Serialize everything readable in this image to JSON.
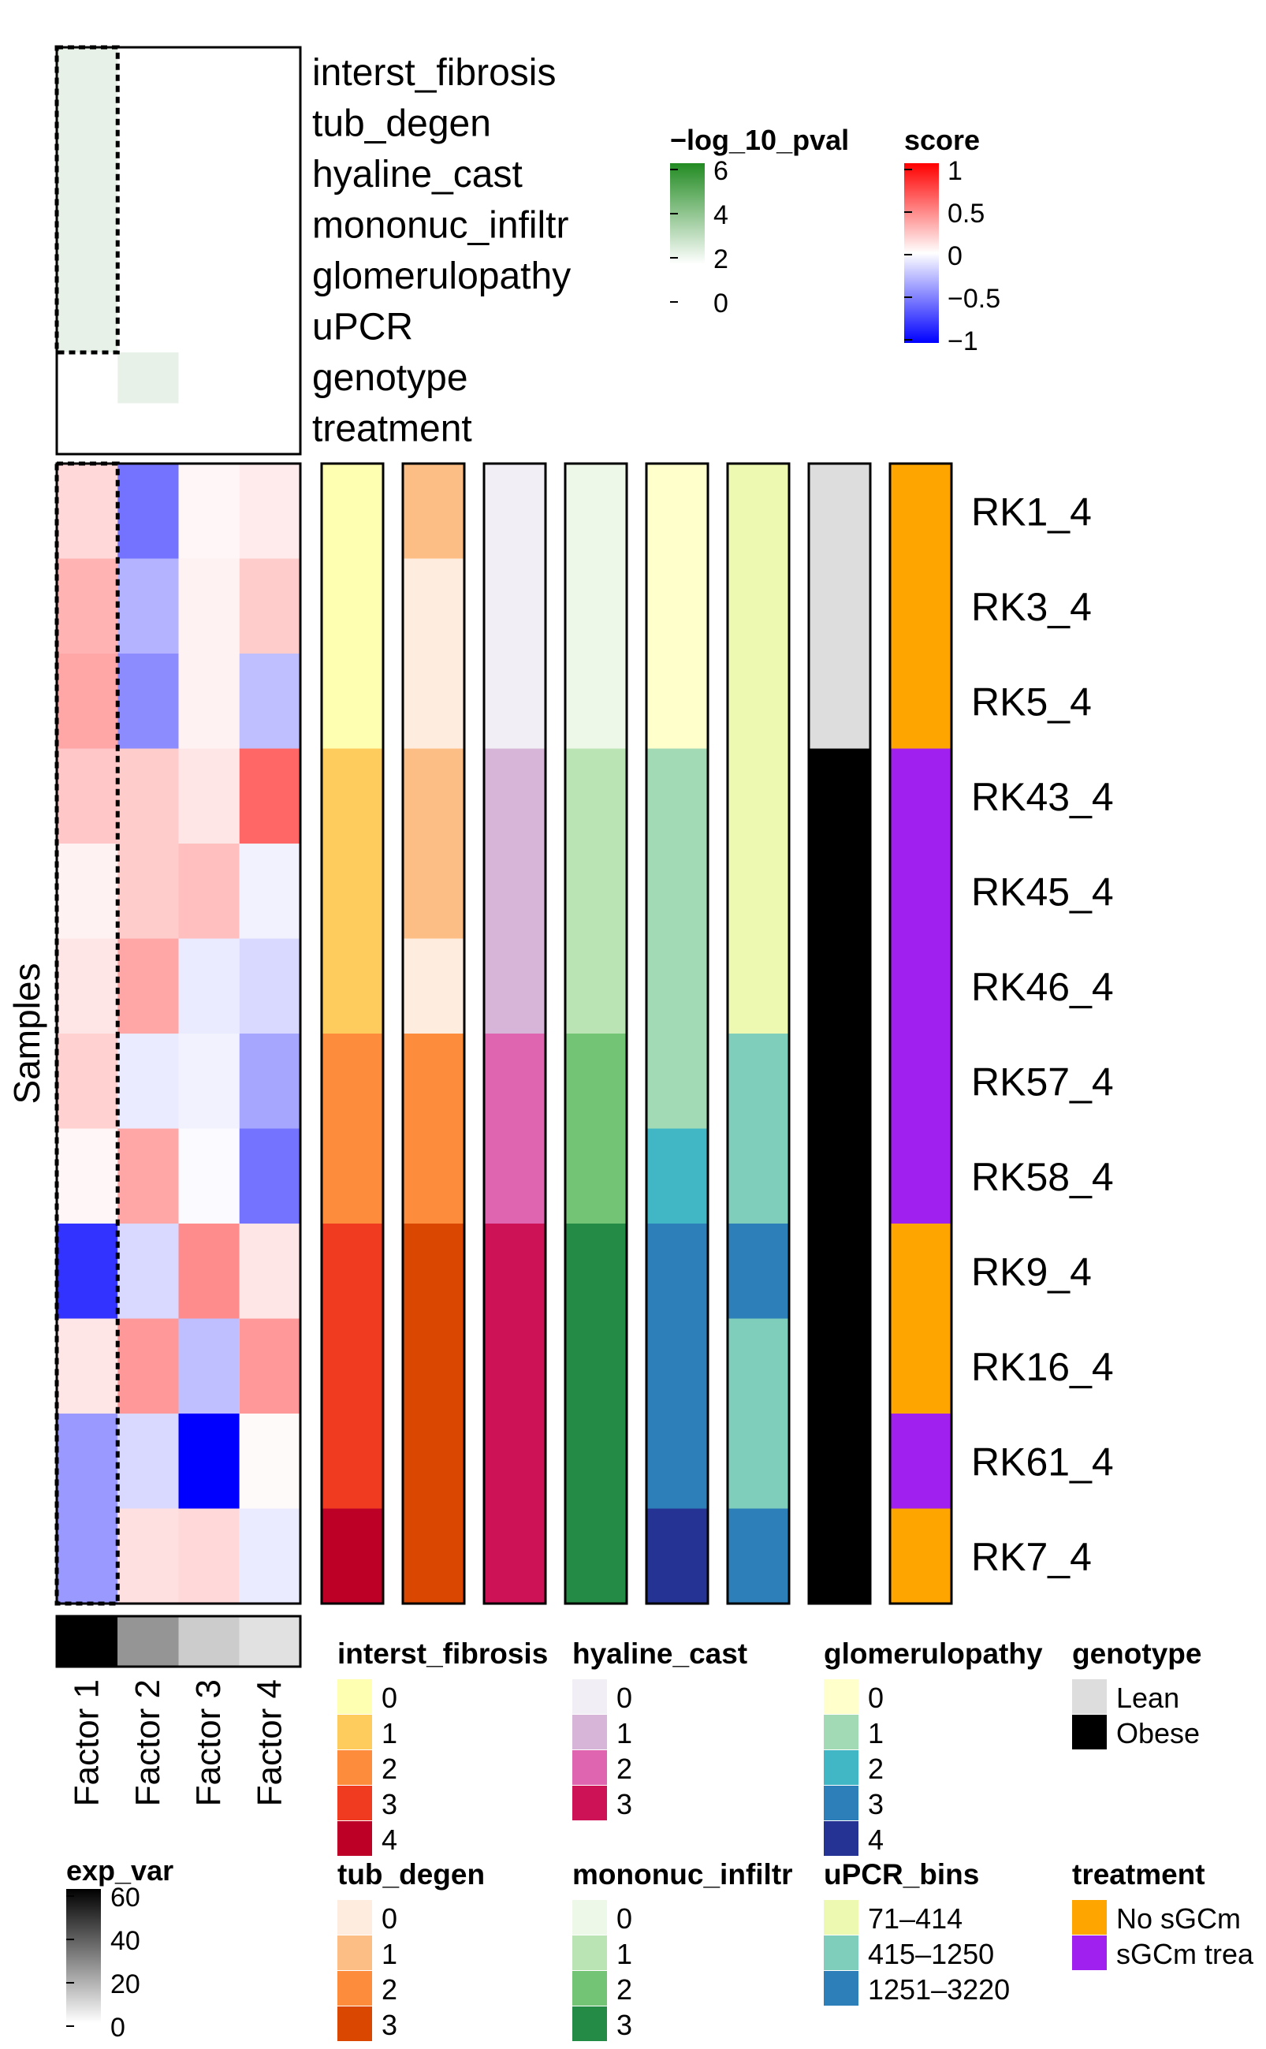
{
  "chart_data": {
    "type": "heatmap",
    "y_axis_label": "Samples",
    "samples": [
      "RK1_4",
      "RK3_4",
      "RK5_4",
      "RK43_4",
      "RK45_4",
      "RK46_4",
      "RK57_4",
      "RK58_4",
      "RK9_4",
      "RK16_4",
      "RK61_4",
      "RK7_4"
    ],
    "factors": [
      "Factor 1",
      "Factor 2",
      "Factor 3",
      "Factor 4"
    ],
    "covariates": [
      "interst_fibrosis",
      "tub_degen",
      "hyaline_cast",
      "mononuc_infiltr",
      "glomerulopathy",
      "uPCR",
      "genotype",
      "treatment"
    ],
    "pval_matrix": [
      [
        1,
        0,
        0,
        0
      ],
      [
        1,
        0,
        0,
        0
      ],
      [
        1,
        0,
        0,
        0
      ],
      [
        1,
        0,
        0,
        0
      ],
      [
        1,
        0,
        0,
        0
      ],
      [
        1,
        0,
        0,
        0
      ],
      [
        0,
        1,
        0,
        0
      ],
      [
        0,
        0,
        0,
        0
      ]
    ],
    "factor_scores": [
      [
        0.15,
        -0.55,
        0.03,
        0.08
      ],
      [
        0.3,
        -0.3,
        0.05,
        0.2
      ],
      [
        0.35,
        -0.45,
        0.05,
        -0.25
      ],
      [
        0.22,
        0.2,
        0.1,
        0.6
      ],
      [
        0.05,
        0.2,
        0.25,
        -0.05
      ],
      [
        0.1,
        0.35,
        -0.08,
        -0.15
      ],
      [
        0.18,
        -0.08,
        -0.05,
        -0.35
      ],
      [
        0.03,
        0.35,
        -0.02,
        -0.55
      ],
      [
        -0.8,
        -0.15,
        0.45,
        0.1
      ],
      [
        0.1,
        0.4,
        -0.25,
        0.4
      ],
      [
        -0.4,
        -0.15,
        -1.0,
        0.02
      ],
      [
        -0.4,
        0.12,
        0.15,
        -0.08
      ]
    ],
    "exp_var": [
      60,
      25,
      12,
      7
    ],
    "annotations": {
      "interst_fibrosis": [
        "0",
        "0",
        "0",
        "1",
        "1",
        "1",
        "2",
        "2",
        "3",
        "3",
        "3",
        "4"
      ],
      "tub_degen": [
        "1",
        "0",
        "0",
        "1",
        "1",
        "0",
        "2",
        "2",
        "3",
        "3",
        "3",
        "3"
      ],
      "hyaline_cast": [
        "0",
        "0",
        "0",
        "1",
        "1",
        "1",
        "2",
        "2",
        "3",
        "3",
        "3",
        "3"
      ],
      "mononuc_infiltr": [
        "0",
        "0",
        "0",
        "1",
        "1",
        "1",
        "2",
        "2",
        "3",
        "3",
        "3",
        "3"
      ],
      "glomerulopathy": [
        "0",
        "0",
        "0",
        "1",
        "1",
        "1",
        "1",
        "2",
        "3",
        "3",
        "3",
        "4"
      ],
      "uPCR_bins": [
        "71–414",
        "71–414",
        "71–414",
        "71–414",
        "71–414",
        "71–414",
        "415–1250",
        "415–1250",
        "1251–3220",
        "415–1250",
        "415–1250",
        "1251–3220"
      ],
      "genotype": [
        "Lean",
        "Lean",
        "Lean",
        "Obese",
        "Obese",
        "Obese",
        "Obese",
        "Obese",
        "Obese",
        "Obese",
        "Obese",
        "Obese"
      ],
      "treatment": [
        "No sGCm",
        "No sGCm",
        "No sGCm",
        "sGCm trea",
        "sGCm trea",
        "sGCm trea",
        "sGCm trea",
        "sGCm trea",
        "No sGCm",
        "No sGCm",
        "sGCm trea",
        "No sGCm"
      ]
    },
    "color_scales": {
      "pval": {
        "title": "−log_10_pval",
        "ticks": [
          "6",
          "4",
          "2",
          "0"
        ],
        "low": "#ffffff",
        "high": "#228b22"
      },
      "score": {
        "title": "score",
        "ticks": [
          "1",
          "0.5",
          "0",
          "−0.5",
          "−1"
        ],
        "low": "#0000ff",
        "mid": "#ffffff",
        "high": "#ff0000"
      },
      "exp_var": {
        "title": "exp_var",
        "ticks": [
          "60",
          "40",
          "20",
          "0"
        ],
        "low": "#ffffff",
        "high": "#000000"
      }
    },
    "legends": {
      "interst_fibrosis": {
        "title": "interst_fibrosis",
        "levels": [
          "0",
          "1",
          "2",
          "3",
          "4"
        ],
        "colors": [
          "#ffffb2",
          "#fecc5c",
          "#fd8d3c",
          "#f03b20",
          "#bd0026"
        ]
      },
      "tub_degen": {
        "title": "tub_degen",
        "levels": [
          "0",
          "1",
          "2",
          "3"
        ],
        "colors": [
          "#feedde",
          "#fdbe85",
          "#fd8d3c",
          "#d94701"
        ]
      },
      "hyaline_cast": {
        "title": "hyaline_cast",
        "levels": [
          "0",
          "1",
          "2",
          "3"
        ],
        "colors": [
          "#f1eef6",
          "#d7b5d8",
          "#df65b0",
          "#ce1256"
        ]
      },
      "mononuc_infiltr": {
        "title": "mononuc_infiltr",
        "levels": [
          "0",
          "1",
          "2",
          "3"
        ],
        "colors": [
          "#edf8e9",
          "#bae4b3",
          "#74c476",
          "#238b45"
        ]
      },
      "glomerulopathy": {
        "title": "glomerulopathy",
        "levels": [
          "0",
          "1",
          "2",
          "3",
          "4"
        ],
        "colors": [
          "#ffffcc",
          "#a1dab4",
          "#41b6c4",
          "#2c7fb8",
          "#253494"
        ]
      },
      "uPCR_bins": {
        "title": "uPCR_bins",
        "levels": [
          "71–414",
          "415–1250",
          "1251–3220"
        ],
        "colors": [
          "#edf8b1",
          "#7fcdbb",
          "#2c7fb8"
        ]
      },
      "genotype": {
        "title": "genotype",
        "levels": [
          "Lean",
          "Obese"
        ],
        "colors": [
          "#dddddd",
          "#000000"
        ]
      },
      "treatment": {
        "title": "treatment",
        "levels": [
          "No sGCm",
          "sGCm trea"
        ],
        "colors": [
          "#ffa500",
          "#a020f0"
        ]
      }
    }
  }
}
